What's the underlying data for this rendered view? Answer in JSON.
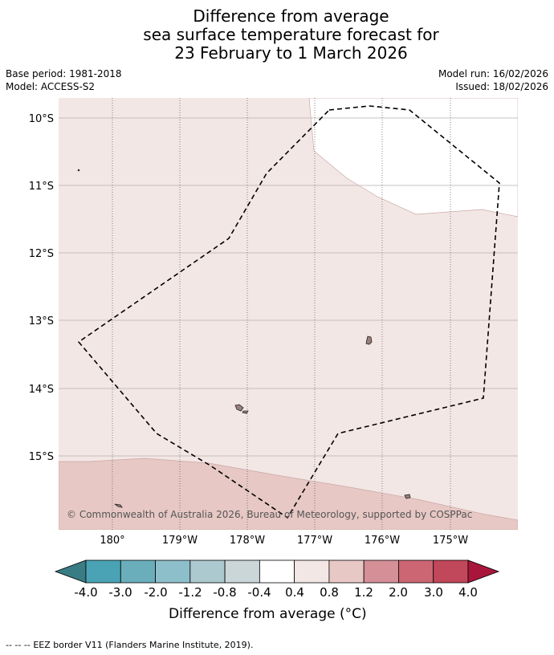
{
  "title": {
    "line1": "Difference from average",
    "line2": "sea surface temperature forecast for",
    "line3": "23 February to 1 March 2026"
  },
  "meta": {
    "base_period": "Base period: 1981-2018",
    "model": "Model: ACCESS-S2",
    "model_run": "Model run: 16/02/2026",
    "issued": "Issued: 18/02/2026"
  },
  "map": {
    "lat_labels": [
      "10°S",
      "11°S",
      "12°S",
      "13°S",
      "14°S",
      "15°S"
    ],
    "lon_labels": [
      "180°",
      "179°W",
      "178°W",
      "177°W",
      "176°W",
      "175°W"
    ],
    "copyright": "© Commonwealth of Australia 2026, Bureau of Meteorology, supported by COSPPac",
    "colors": {
      "fill_0_4_to_0_8": "#f3e7e5",
      "fill_0_8_to_1_2": "#e7c8c4",
      "fill_neutral": "#ffffff",
      "land": "#9a7f7b",
      "eez_border": "#000000",
      "gridline": "#b9b0ae"
    }
  },
  "colorbar": {
    "labels": [
      "-4.0",
      "-3.0",
      "-2.0",
      "-1.2",
      "-0.8",
      "-0.4",
      "0.4",
      "0.8",
      "1.2",
      "2.0",
      "3.0",
      "4.0"
    ],
    "colors": [
      "#3a7c84",
      "#4aa3b5",
      "#6aaebb",
      "#8dbfca",
      "#acc9cf",
      "#cbd6d9",
      "#ffffff",
      "#f3e7e5",
      "#e7c8c4",
      "#d58f96",
      "#cc6673",
      "#c1475a",
      "#a8173b"
    ],
    "title": "Difference from average (°C)"
  },
  "footer": {
    "legend_symbol": "-- -- --",
    "legend_text": "EEZ border V11 (Flanders Marine Institute, 2019)."
  }
}
